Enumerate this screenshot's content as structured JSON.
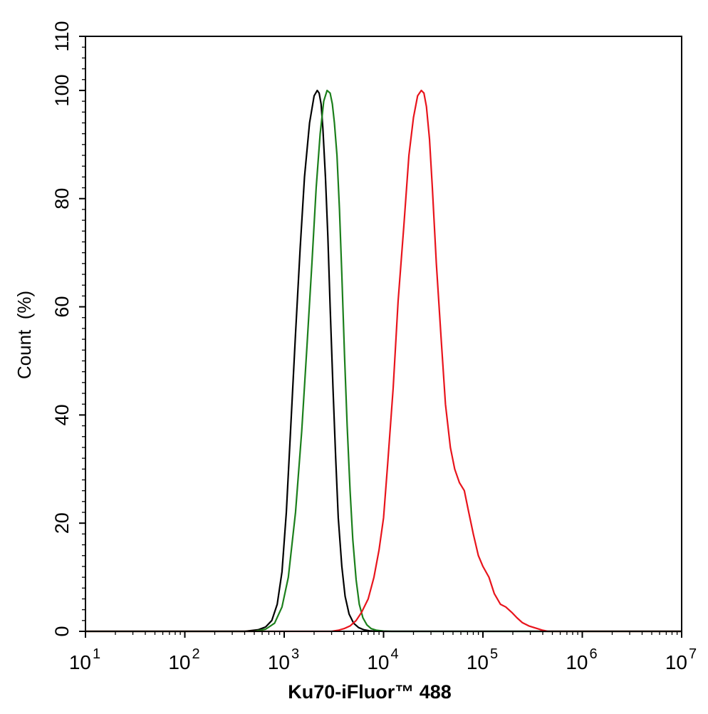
{
  "chart_data": {
    "type": "line",
    "xlabel": "Ku70-iFluor™ 488",
    "ylabel": "Count  (%)",
    "x_scale": "log",
    "xlim": [
      10,
      10000000
    ],
    "ylim": [
      0,
      110
    ],
    "x_ticks": [
      {
        "value": 10,
        "base": "10",
        "exp": "1"
      },
      {
        "value": 100,
        "base": "10",
        "exp": "2"
      },
      {
        "value": 1000,
        "base": "10",
        "exp": "3"
      },
      {
        "value": 10000,
        "base": "10",
        "exp": "4"
      },
      {
        "value": 100000,
        "base": "10",
        "exp": "5"
      },
      {
        "value": 1000000,
        "base": "10",
        "exp": "6"
      },
      {
        "value": 10000000,
        "base": "10",
        "exp": "7"
      }
    ],
    "y_ticks": [
      0,
      20,
      40,
      60,
      80,
      100,
      110
    ],
    "y_tick_labels": [
      "0",
      "20",
      "40",
      "60",
      "80",
      "100",
      "110"
    ],
    "grid": false,
    "series": [
      {
        "color": "#000000",
        "x": [
          10,
          100,
          400,
          550,
          650,
          750,
          850,
          950,
          1050,
          1150,
          1300,
          1450,
          1600,
          1800,
          2000,
          2150,
          2250,
          2350,
          2450,
          2600,
          2750,
          2900,
          3100,
          3300,
          3500,
          3800,
          4100,
          4500,
          5000,
          5600,
          6300,
          7200,
          8500,
          10000,
          10000000
        ],
        "y": [
          0,
          0,
          0,
          0.3,
          0.8,
          2,
          5,
          11,
          22,
          36,
          55,
          71,
          84,
          94,
          99,
          100,
          99.5,
          97.5,
          93,
          84,
          73,
          60,
          45,
          32,
          21,
          12,
          6.5,
          3.2,
          1.5,
          0.7,
          0.3,
          0.1,
          0.03,
          0,
          0
        ]
      },
      {
        "color": "#1b7f1b",
        "x": [
          10,
          100,
          500,
          650,
          800,
          950,
          1100,
          1300,
          1500,
          1700,
          1900,
          2100,
          2300,
          2500,
          2700,
          2900,
          3050,
          3200,
          3400,
          3600,
          3800,
          4050,
          4300,
          4600,
          4900,
          5300,
          5700,
          6200,
          6800,
          7500,
          8500,
          10000,
          12000,
          10000000
        ],
        "y": [
          0,
          0,
          0,
          0.4,
          1.5,
          4.5,
          10,
          22,
          37,
          53,
          68,
          82,
          92,
          98,
          100,
          99.5,
          97.5,
          94,
          88,
          78,
          66,
          51,
          38,
          26,
          17,
          9.5,
          5,
          2.5,
          1.2,
          0.5,
          0.2,
          0.05,
          0,
          0
        ]
      },
      {
        "color": "#e8141c",
        "x": [
          10,
          100,
          1000,
          3000,
          3500,
          4000,
          4600,
          5300,
          6000,
          7000,
          8000,
          9000,
          10000,
          11000,
          12500,
          14000,
          16000,
          18000,
          20000,
          22000,
          24000,
          25500,
          27000,
          29000,
          31000,
          34000,
          38000,
          42000,
          47000,
          52000,
          58000,
          65000,
          72000,
          80000,
          90000,
          100000,
          115000,
          130000,
          150000,
          170000,
          195000,
          220000,
          250000,
          290000,
          340000,
          400000,
          450000,
          10000000
        ],
        "y": [
          0,
          0,
          0,
          0,
          0.2,
          0.5,
          1,
          2,
          3.5,
          6,
          10,
          15,
          21,
          31,
          45,
          61,
          75,
          88,
          95,
          99,
          100,
          99.5,
          97,
          91,
          82,
          68,
          54,
          42,
          34,
          30,
          27.5,
          26,
          22,
          18,
          14,
          12,
          10,
          7,
          5,
          4.5,
          3.5,
          2.5,
          1.6,
          1,
          0.6,
          0.2,
          0,
          0
        ]
      }
    ]
  }
}
